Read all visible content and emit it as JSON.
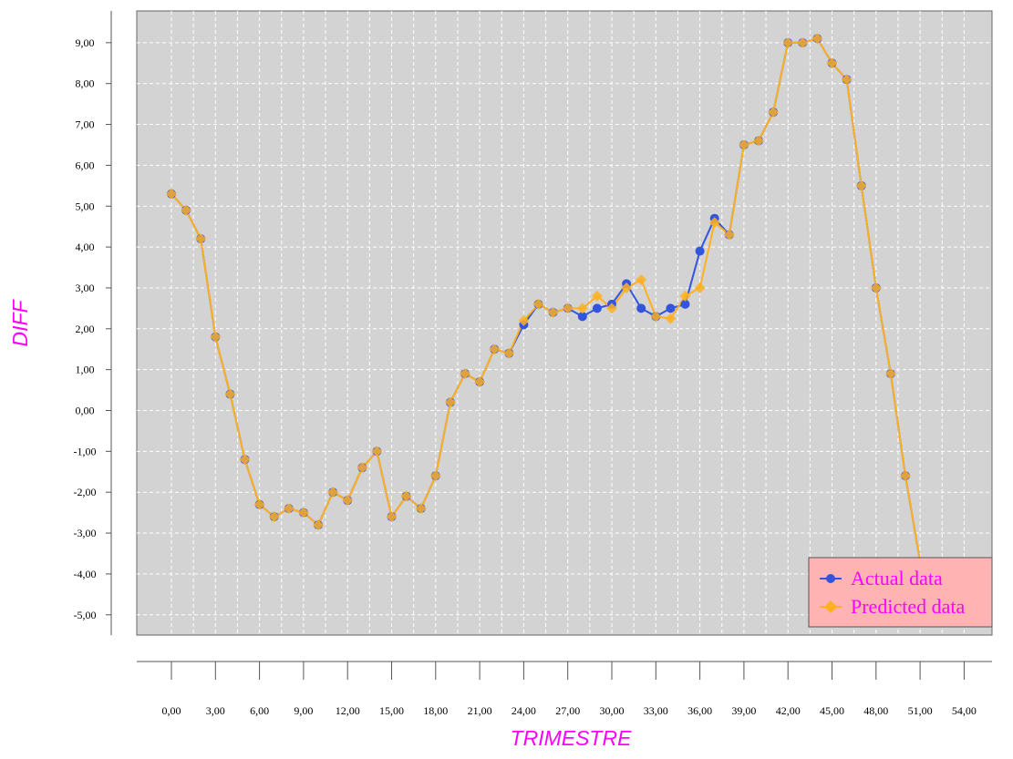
{
  "chart_data": {
    "type": "line",
    "xlabel": "TRIMESTRE",
    "ylabel": "DIFF",
    "xlim": [
      -3,
      57
    ],
    "ylim": [
      -5.5,
      9.75
    ],
    "x_ticks": [
      "0,00",
      "3,00",
      "6,00",
      "9,00",
      "12,00",
      "15,00",
      "18,00",
      "21,00",
      "24,00",
      "27,00",
      "30,00",
      "33,00",
      "36,00",
      "39,00",
      "42,00",
      "45,00",
      "48,00",
      "51,00",
      "54,00"
    ],
    "x_tick_values": [
      0,
      3,
      6,
      9,
      12,
      15,
      18,
      21,
      24,
      27,
      30,
      33,
      36,
      39,
      42,
      45,
      48,
      51,
      54
    ],
    "y_ticks": [
      "9,00",
      "8,00",
      "7,00",
      "6,00",
      "5,00",
      "4,00",
      "3,00",
      "2,00",
      "1,00",
      "0,00",
      "-1,00",
      "-2,00",
      "-3,00",
      "-4,00",
      "-5,00"
    ],
    "y_tick_values": [
      9,
      8,
      7,
      6,
      5,
      4,
      3,
      2,
      1,
      0,
      -1,
      -2,
      -3,
      -4,
      -5
    ],
    "grid": true,
    "legend_position": "bottom-right",
    "x": [
      0,
      1,
      2,
      3,
      4,
      5,
      6,
      7,
      8,
      9,
      10,
      11,
      12,
      13,
      14,
      15,
      16,
      17,
      18,
      19,
      20,
      21,
      22,
      23,
      24,
      25,
      26,
      27,
      28,
      29,
      30,
      31,
      32,
      33,
      34,
      35,
      36,
      37,
      38,
      39,
      40,
      41,
      42,
      43,
      44,
      45,
      46,
      47,
      48,
      49,
      50,
      51
    ],
    "series": [
      {
        "name": "Actual data",
        "color": "#3355dd",
        "marker": "circle",
        "values": [
          5.3,
          4.9,
          4.2,
          1.8,
          0.4,
          -1.2,
          -2.3,
          -2.6,
          -2.4,
          -2.5,
          -2.8,
          -2.0,
          -2.2,
          -1.4,
          -1.0,
          -2.6,
          -2.1,
          -2.4,
          -1.6,
          0.2,
          0.9,
          0.7,
          1.5,
          1.4,
          2.1,
          2.6,
          2.4,
          2.5,
          2.3,
          2.5,
          2.6,
          3.1,
          2.5,
          2.3,
          2.5,
          2.6,
          3.9,
          4.7,
          4.3,
          6.5,
          6.6,
          7.3,
          9.0,
          9.0,
          9.1,
          8.5,
          8.1,
          5.5,
          3.0,
          0.9,
          -1.6,
          -3.7
        ]
      },
      {
        "name": "Predicted data",
        "color": "#ffb020",
        "marker": "diamond",
        "values": [
          5.3,
          4.9,
          4.2,
          1.8,
          0.4,
          -1.2,
          -2.3,
          -2.6,
          -2.4,
          -2.5,
          -2.8,
          -2.0,
          -2.2,
          -1.4,
          -1.0,
          -2.6,
          -2.1,
          -2.4,
          -1.6,
          0.2,
          0.9,
          0.7,
          1.5,
          1.4,
          2.2,
          2.6,
          2.4,
          2.5,
          2.5,
          2.8,
          2.5,
          3.0,
          3.2,
          2.3,
          2.25,
          2.8,
          3.0,
          4.6,
          4.3,
          6.5,
          6.6,
          7.3,
          9.0,
          9.0,
          9.1,
          8.5,
          8.1,
          5.5,
          3.0,
          0.9,
          -1.6,
          -3.7
        ]
      }
    ]
  }
}
